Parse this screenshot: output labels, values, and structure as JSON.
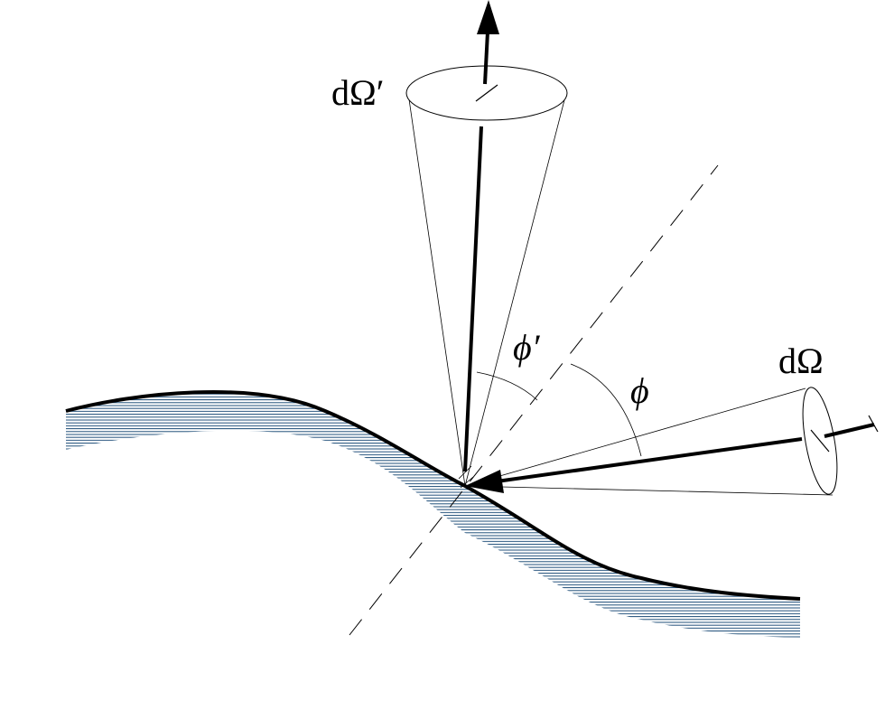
{
  "labels": {
    "d_omega_prime": "dΩ′",
    "d_omega": "dΩ",
    "phi_prime": "ϕ′",
    "phi": "ϕ"
  },
  "colors": {
    "ink": "#000000",
    "hatch": "#1f4e79",
    "background": "#ffffff"
  }
}
